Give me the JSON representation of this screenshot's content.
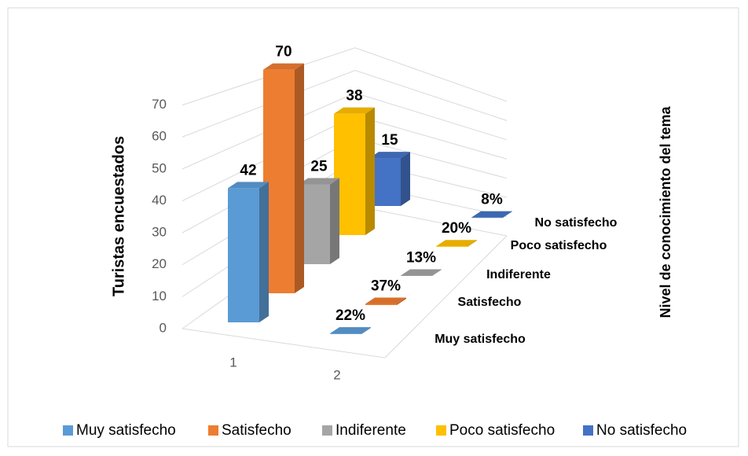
{
  "chart_data": {
    "type": "bar3d",
    "y_label": "Turistas encuestados",
    "z_label": "Nivel de conocimiento del tema",
    "categories": [
      "1",
      "2"
    ],
    "series": [
      {
        "name": "Muy satisfecho",
        "color": "#5b9bd5",
        "values": [
          42,
          0.22
        ],
        "value_labels": [
          "42",
          "22%"
        ]
      },
      {
        "name": "Satisfecho",
        "color": "#ed7d31",
        "values": [
          70,
          0.37
        ],
        "value_labels": [
          "70",
          "37%"
        ]
      },
      {
        "name": "Indiferente",
        "color": "#a5a5a5",
        "values": [
          25,
          0.13
        ],
        "value_labels": [
          "25",
          "13%"
        ]
      },
      {
        "name": "Poco satisfecho",
        "color": "#ffc000",
        "values": [
          38,
          0.2
        ],
        "value_labels": [
          "38",
          "20%"
        ]
      },
      {
        "name": "No satisfecho",
        "color": "#4472c4",
        "values": [
          15,
          0.08
        ],
        "value_labels": [
          "15",
          "8%"
        ]
      }
    ],
    "ylim": [
      0,
      80
    ],
    "yticks": [
      0,
      10,
      20,
      30,
      40,
      50,
      60,
      70
    ],
    "grid": true,
    "legend": "bottom"
  }
}
